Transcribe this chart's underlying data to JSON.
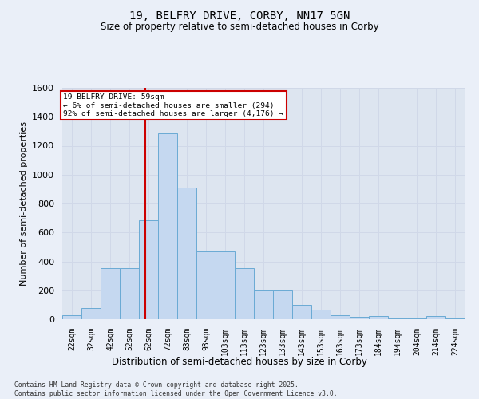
{
  "title_line1": "19, BELFRY DRIVE, CORBY, NN17 5GN",
  "title_line2": "Size of property relative to semi-detached houses in Corby",
  "xlabel": "Distribution of semi-detached houses by size in Corby",
  "ylabel": "Number of semi-detached properties",
  "categories": [
    "22sqm",
    "32sqm",
    "42sqm",
    "52sqm",
    "62sqm",
    "72sqm",
    "83sqm",
    "93sqm",
    "103sqm",
    "113sqm",
    "123sqm",
    "133sqm",
    "143sqm",
    "153sqm",
    "163sqm",
    "173sqm",
    "184sqm",
    "194sqm",
    "204sqm",
    "214sqm",
    "224sqm"
  ],
  "values": [
    25,
    80,
    355,
    355,
    685,
    1285,
    910,
    470,
    470,
    355,
    200,
    200,
    100,
    65,
    25,
    15,
    20,
    5,
    5,
    20,
    5
  ],
  "bar_color": "#c5d8f0",
  "bar_edge_color": "#6aaad4",
  "vline_x_index": 3.85,
  "annotation_text_line1": "19 BELFRY DRIVE: 59sqm",
  "annotation_text_line2": "← 6% of semi-detached houses are smaller (294)",
  "annotation_text_line3": "92% of semi-detached houses are larger (4,176) →",
  "annotation_box_facecolor": "#ffffff",
  "annotation_box_edgecolor": "#cc0000",
  "vline_color": "#cc0000",
  "ylim": [
    0,
    1600
  ],
  "yticks": [
    0,
    200,
    400,
    600,
    800,
    1000,
    1200,
    1400,
    1600
  ],
  "grid_color": "#d0d8e8",
  "bg_color": "#dde5f0",
  "fig_bg_color": "#eaeff8",
  "footer_line1": "Contains HM Land Registry data © Crown copyright and database right 2025.",
  "footer_line2": "Contains public sector information licensed under the Open Government Licence v3.0."
}
